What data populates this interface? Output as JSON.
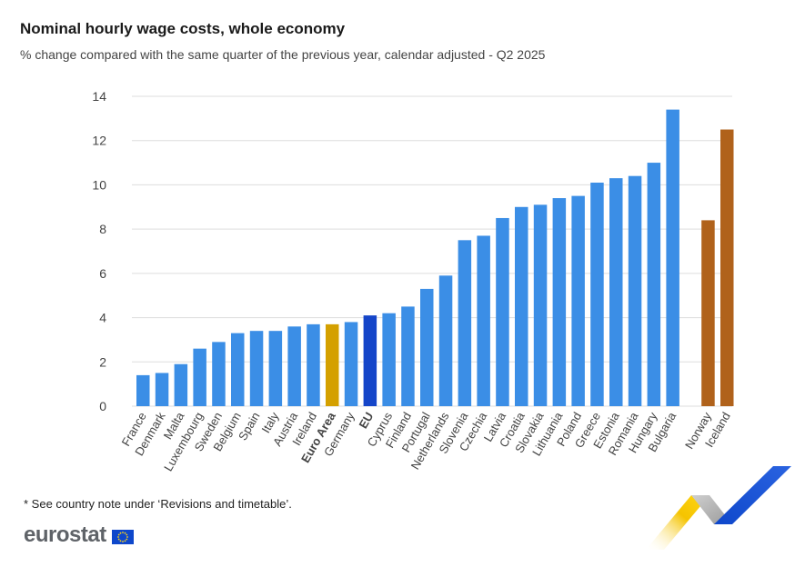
{
  "header": {
    "title": "Nominal hourly wage costs, whole economy",
    "subtitle": "% change compared with the same quarter of the previous year, calendar adjusted - Q2 2025"
  },
  "footer": {
    "footnote": "* See country note under ‘Revisions and timetable’.",
    "brand": "eurostat"
  },
  "colors": {
    "default": "#3b8ee6",
    "euro_area": "#d4a000",
    "eu": "#1545c9",
    "efta": "#b0621b",
    "grid": "#dddddd",
    "axis_text": "#444444"
  },
  "chart_data": {
    "type": "bar",
    "ylim": [
      0,
      14
    ],
    "yticks": [
      0,
      2,
      4,
      6,
      8,
      10,
      12,
      14
    ],
    "grid": true,
    "categories": [
      "France",
      "Denmark",
      "Malta",
      "Luxembourg",
      "Sweden",
      "Belgium",
      "Spain",
      "Italy",
      "Austria",
      "Ireland",
      "Euro Area",
      "Germany",
      "EU",
      "Cyprus",
      "Finland",
      "Portugal",
      "Netherlands",
      "Slovenia",
      "Czechia",
      "Latvia",
      "Croatia",
      "Slovakia",
      "Lithuania",
      "Poland",
      "Greece",
      "Estonia",
      "Romania",
      "Hungary",
      "Bulgaria",
      "Norway",
      "Iceland"
    ],
    "values": [
      1.4,
      1.5,
      1.9,
      2.6,
      2.9,
      3.3,
      3.4,
      3.4,
      3.6,
      3.7,
      3.7,
      3.8,
      4.1,
      4.2,
      4.5,
      5.3,
      5.9,
      7.5,
      7.7,
      8.5,
      9.0,
      9.1,
      9.4,
      9.5,
      10.1,
      10.3,
      10.4,
      11.0,
      13.4,
      8.4,
      12.5
    ],
    "groups": [
      "eu",
      "eu",
      "eu",
      "eu",
      "eu",
      "eu",
      "eu",
      "eu",
      "eu",
      "eu",
      "euro_area",
      "eu",
      "eu_total",
      "eu",
      "eu",
      "eu",
      "eu",
      "eu",
      "eu",
      "eu",
      "eu",
      "eu",
      "eu",
      "eu",
      "eu",
      "eu",
      "eu",
      "eu",
      "eu",
      "efta",
      "efta"
    ],
    "bold_labels": [
      "Euro Area",
      "EU"
    ]
  }
}
